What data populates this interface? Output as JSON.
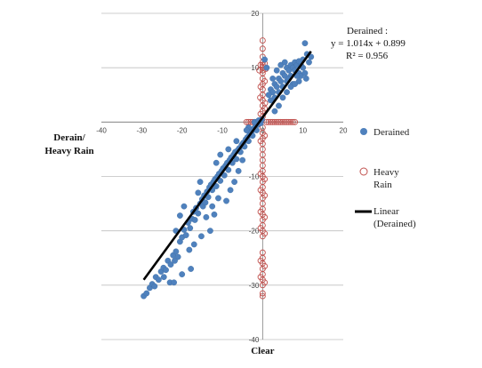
{
  "chart_data": {
    "type": "scatter",
    "xlabel": "Clear",
    "ylabel_lines": [
      "Derain/",
      "Heavy Rain"
    ],
    "xlim": [
      -40,
      20
    ],
    "ylim": [
      -40,
      20
    ],
    "x_ticks": [
      -40,
      -30,
      -20,
      -10,
      0,
      10,
      20
    ],
    "y_ticks": [
      20,
      10,
      0,
      -10,
      -20,
      -30,
      -40
    ],
    "grid": "horizontal",
    "legend_position": "right",
    "annotation": {
      "lines": [
        "Derained :",
        "y = 1.014x + 0.899",
        "R² = 0.956"
      ]
    },
    "colors": {
      "derained": "#4f81bd",
      "heavy_rain": "#c0504d",
      "trend": "#000000",
      "grid": "#bfbfbf"
    },
    "series": [
      {
        "name": "Derained",
        "marker": "filled-circle",
        "points": [
          [
            -29.5,
            -32.0
          ],
          [
            -28.8,
            -31.5
          ],
          [
            -28.0,
            -30.5
          ],
          [
            -27.4,
            -29.8
          ],
          [
            -26.8,
            -30.2
          ],
          [
            -26.5,
            -28.5
          ],
          [
            -25.8,
            -29.0
          ],
          [
            -25.2,
            -27.5
          ],
          [
            -24.6,
            -26.8
          ],
          [
            -24.0,
            -27.2
          ],
          [
            -23.5,
            -25.5
          ],
          [
            -22.8,
            -26.2
          ],
          [
            -22.2,
            -24.5
          ],
          [
            -21.5,
            -23.8
          ],
          [
            -21.0,
            -24.8
          ],
          [
            -23.0,
            -29.5
          ],
          [
            -21.8,
            -25.5
          ],
          [
            -20.5,
            -22.0
          ],
          [
            -20.0,
            -21.2
          ],
          [
            -19.5,
            -19.8
          ],
          [
            -19.0,
            -20.8
          ],
          [
            -18.5,
            -18.5
          ],
          [
            -18.0,
            -19.5
          ],
          [
            -17.5,
            -17.8
          ],
          [
            -17.2,
            -16.5
          ],
          [
            -16.8,
            -18.0
          ],
          [
            -16.5,
            -15.8
          ],
          [
            -16.0,
            -16.8
          ],
          [
            -15.5,
            -15.0
          ],
          [
            -15.0,
            -14.2
          ],
          [
            -14.8,
            -15.5
          ],
          [
            -14.5,
            -13.5
          ],
          [
            -14.2,
            -14.8
          ],
          [
            -13.8,
            -12.8
          ],
          [
            -13.5,
            -13.8
          ],
          [
            -13.2,
            -12.0
          ],
          [
            -12.8,
            -11.5
          ],
          [
            -12.5,
            -12.5
          ],
          [
            -12.2,
            -11.0
          ],
          [
            -11.8,
            -10.5
          ],
          [
            -11.5,
            -11.8
          ],
          [
            -11.2,
            -10.0
          ],
          [
            -10.8,
            -9.5
          ],
          [
            -10.5,
            -10.8
          ],
          [
            -10.2,
            -9.0
          ],
          [
            -9.8,
            -8.5
          ],
          [
            -9.5,
            -9.8
          ],
          [
            -9.2,
            -8.0
          ],
          [
            -8.8,
            -7.5
          ],
          [
            -8.5,
            -8.8
          ],
          [
            -8.2,
            -7.0
          ],
          [
            -7.8,
            -6.5
          ],
          [
            -7.5,
            -7.5
          ],
          [
            -7.2,
            -6.0
          ],
          [
            -6.8,
            -5.5
          ],
          [
            -6.5,
            -6.8
          ],
          [
            -6.2,
            -5.2
          ],
          [
            -5.8,
            -4.8
          ],
          [
            -5.5,
            -5.5
          ],
          [
            -5.2,
            -4.2
          ],
          [
            -4.8,
            -3.8
          ],
          [
            -4.5,
            -4.5
          ],
          [
            -4.2,
            -3.2
          ],
          [
            -3.8,
            -2.8
          ],
          [
            -3.5,
            -3.5
          ],
          [
            -3.2,
            -2.2
          ],
          [
            -2.8,
            -1.8
          ],
          [
            -2.5,
            -2.5
          ],
          [
            -2.2,
            -1.2
          ],
          [
            -1.8,
            -0.8
          ],
          [
            -1.5,
            -1.5
          ],
          [
            -1.2,
            -0.5
          ],
          [
            -0.8,
            0.2
          ],
          [
            -0.5,
            -0.2
          ],
          [
            -0.2,
            0.5
          ],
          [
            -18.2,
            -23.5
          ],
          [
            -17.0,
            -22.5
          ],
          [
            -15.2,
            -21.0
          ],
          [
            -13.0,
            -20.0
          ],
          [
            -16.0,
            -13.0
          ],
          [
            -12.0,
            -17.0
          ],
          [
            -11.0,
            -14.0
          ],
          [
            -9.0,
            -14.5
          ],
          [
            -8.0,
            -12.5
          ],
          [
            -7.0,
            -11.0
          ],
          [
            -19.5,
            -15.5
          ],
          [
            -15.5,
            -11.0
          ],
          [
            -20.5,
            -17.2
          ],
          [
            -21.5,
            -20.0
          ],
          [
            -10.5,
            -6.0
          ],
          [
            -24.5,
            -28.5
          ],
          [
            -14.0,
            -17.5
          ],
          [
            -12.5,
            -15.5
          ],
          [
            -6.0,
            -9.0
          ],
          [
            -5.0,
            -7.0
          ],
          [
            -3.5,
            -1.0
          ],
          [
            -2.0,
            0.0
          ],
          [
            -1.0,
            0.3
          ],
          [
            -4.0,
            -1.5
          ],
          [
            -6.5,
            -3.5
          ],
          [
            -20.0,
            -28.0
          ],
          [
            -22.0,
            -29.5
          ],
          [
            -17.8,
            -27.0
          ],
          [
            -8.5,
            -5.0
          ],
          [
            -11.5,
            -7.5
          ],
          [
            2.0,
            6.0
          ],
          [
            2.5,
            5.5
          ],
          [
            3.0,
            7.0
          ],
          [
            3.5,
            6.5
          ],
          [
            4.0,
            8.0
          ],
          [
            4.5,
            7.5
          ],
          [
            5.0,
            9.0
          ],
          [
            5.5,
            8.5
          ],
          [
            6.0,
            10.0
          ],
          [
            6.5,
            9.5
          ],
          [
            7.0,
            10.5
          ],
          [
            7.5,
            10.0
          ],
          [
            8.0,
            11.0
          ],
          [
            8.5,
            10.5
          ],
          [
            9.0,
            9.0
          ],
          [
            9.5,
            8.5
          ],
          [
            10.0,
            10.0
          ],
          [
            10.5,
            9.0
          ],
          [
            11.0,
            12.5
          ],
          [
            10.5,
            14.5
          ],
          [
            12.0,
            12.0
          ],
          [
            3.0,
            4.5
          ],
          [
            4.0,
            5.5
          ],
          [
            5.0,
            6.5
          ],
          [
            6.0,
            7.5
          ],
          [
            7.0,
            8.5
          ],
          [
            8.0,
            9.5
          ],
          [
            9.0,
            7.5
          ],
          [
            2.5,
            8.0
          ],
          [
            3.5,
            9.5
          ],
          [
            4.5,
            10.5
          ],
          [
            5.5,
            11.0
          ],
          [
            6.5,
            8.0
          ],
          [
            7.5,
            7.0
          ],
          [
            8.5,
            8.5
          ],
          [
            9.5,
            10.5
          ],
          [
            1.5,
            5.0
          ],
          [
            2.0,
            4.0
          ],
          [
            6.0,
            5.5
          ],
          [
            7.0,
            6.5
          ],
          [
            10.0,
            11.5
          ],
          [
            1.0,
            10.0
          ],
          [
            0.5,
            11.5
          ],
          [
            9.0,
            11.2
          ],
          [
            8.0,
            7.0
          ],
          [
            5.0,
            4.5
          ],
          [
            4.0,
            3.0
          ],
          [
            3.0,
            2.0
          ],
          [
            11.5,
            11.0
          ],
          [
            10.8,
            8.0
          ]
        ]
      },
      {
        "name": "Heavy Rain",
        "marker": "open-circle",
        "points": [
          [
            0,
            15.0
          ],
          [
            0,
            13.5
          ],
          [
            0,
            12.0
          ],
          [
            0,
            11.0
          ],
          [
            0,
            10.5
          ],
          [
            0,
            10.0
          ],
          [
            0,
            9.5
          ],
          [
            0,
            9.0
          ],
          [
            0,
            8.0
          ],
          [
            0,
            7.0
          ],
          [
            0,
            6.0
          ],
          [
            0,
            5.0
          ],
          [
            0,
            4.0
          ],
          [
            0,
            3.0
          ],
          [
            0,
            2.0
          ],
          [
            0,
            1.0
          ],
          [
            0,
            -1.0
          ],
          [
            0,
            -2.0
          ],
          [
            0,
            -3.0
          ],
          [
            0,
            -4.0
          ],
          [
            0,
            -5.0
          ],
          [
            0,
            -6.0
          ],
          [
            0,
            -7.0
          ],
          [
            0,
            -8.0
          ],
          [
            0,
            -9.0
          ],
          [
            0,
            -10.0
          ],
          [
            0,
            -11.0
          ],
          [
            0,
            -12.0
          ],
          [
            0,
            -13.0
          ],
          [
            0,
            -14.0
          ],
          [
            0,
            -15.0
          ],
          [
            0,
            -16.0
          ],
          [
            0,
            -17.0
          ],
          [
            0,
            -18.0
          ],
          [
            0,
            -19.0
          ],
          [
            0,
            -20.0
          ],
          [
            0,
            -21.0
          ],
          [
            0,
            -24.0
          ],
          [
            0,
            -25.0
          ],
          [
            0,
            -26.0
          ],
          [
            0,
            -27.0
          ],
          [
            0,
            -28.0
          ],
          [
            0,
            -29.0
          ],
          [
            0,
            -30.0
          ],
          [
            0,
            -31.5
          ],
          [
            0,
            -32.0
          ],
          [
            -0.5,
            10.5
          ],
          [
            0.5,
            10.8
          ],
          [
            -0.8,
            9.5
          ],
          [
            0.8,
            9.8
          ],
          [
            -0.5,
            6.5
          ],
          [
            0.5,
            7.5
          ],
          [
            -0.6,
            4.5
          ],
          [
            0.6,
            3.5
          ],
          [
            -0.5,
            1.5
          ],
          [
            0.5,
            2.5
          ],
          [
            -0.5,
            -3.5
          ],
          [
            0.5,
            -2.5
          ],
          [
            -0.5,
            -9.5
          ],
          [
            0.5,
            -10.5
          ],
          [
            -0.5,
            -12.5
          ],
          [
            0.5,
            -13.5
          ],
          [
            -0.5,
            -16.5
          ],
          [
            0.5,
            -17.5
          ],
          [
            -0.5,
            -19.5
          ],
          [
            0.5,
            -20.5
          ],
          [
            -0.5,
            -25.5
          ],
          [
            0.5,
            -26.5
          ],
          [
            -0.5,
            -28.5
          ],
          [
            0.5,
            -29.5
          ],
          [
            1,
            0
          ],
          [
            2,
            0
          ],
          [
            3,
            0
          ],
          [
            4,
            0
          ],
          [
            5,
            0
          ],
          [
            6,
            0
          ],
          [
            7,
            0
          ],
          [
            8,
            0
          ],
          [
            1.5,
            0
          ],
          [
            2.5,
            0
          ],
          [
            3.5,
            0
          ],
          [
            4.5,
            0
          ],
          [
            5.5,
            0
          ],
          [
            6.5,
            0
          ],
          [
            7.5,
            0
          ],
          [
            -1,
            0
          ],
          [
            -2,
            0
          ],
          [
            -3,
            0
          ],
          [
            -4,
            0
          ],
          [
            -1.5,
            0
          ],
          [
            -2.5,
            0
          ],
          [
            -3.5,
            0
          ]
        ]
      },
      {
        "name": "Linear (Derained)",
        "marker": "line",
        "x": [
          -29.5,
          12.0
        ],
        "y": [
          -29.0,
          13.0
        ]
      }
    ],
    "legend": [
      {
        "lines": [
          "Derained"
        ],
        "series_index": 0
      },
      {
        "lines": [
          "Heavy",
          "Rain"
        ],
        "series_index": 1
      },
      {
        "lines": [
          "Linear",
          "(Derained)"
        ],
        "series_index": 2
      }
    ]
  }
}
